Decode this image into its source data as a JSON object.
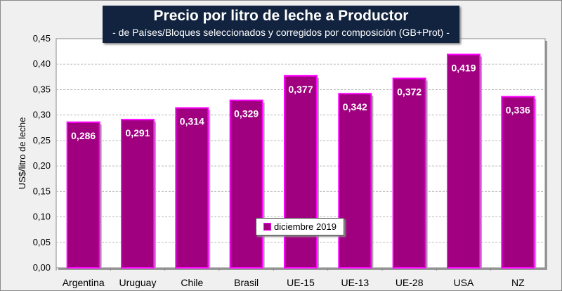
{
  "chart_data": {
    "type": "bar",
    "title": "Precio por litro de leche a Productor",
    "subtitle": "-  de Países/Bloques seleccionados y corregidos por composición (GB+Prot) -",
    "ylabel": "US$/litro de leche",
    "xlabel": "",
    "categories": [
      "Argentina",
      "Uruguay",
      "Chile",
      "Brasil",
      "UE-15",
      "UE-13",
      "UE-28",
      "USA",
      "NZ"
    ],
    "series": [
      {
        "name": "diciembre 2019",
        "values": [
          0.286,
          0.291,
          0.314,
          0.329,
          0.377,
          0.342,
          0.372,
          0.419,
          0.336
        ]
      }
    ],
    "data_labels": [
      "0,286",
      "0,291",
      "0,314",
      "0,329",
      "0,377",
      "0,342",
      "0,372",
      "0,419",
      "0,336"
    ],
    "yticks": [
      "0,00",
      "0,05",
      "0,10",
      "0,15",
      "0,20",
      "0,25",
      "0,30",
      "0,35",
      "0,40",
      "0,45"
    ],
    "ylim": [
      0,
      0.45
    ],
    "grid": true,
    "legend_position": "bottom-center",
    "colors": {
      "bar_fill": "#a0007f",
      "bar_border": "#ff00ff"
    }
  }
}
